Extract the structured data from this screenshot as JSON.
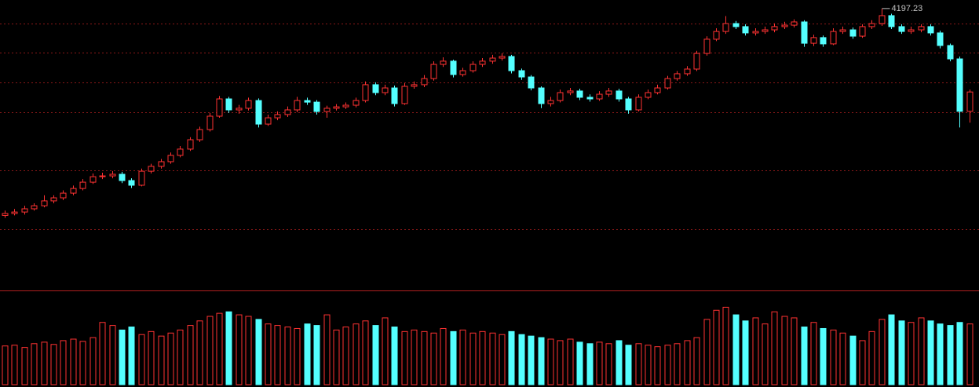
{
  "chart_data": {
    "type": "candlestick",
    "ylim": [
      2450,
      4250
    ],
    "gridlines": [
      4104,
      3924,
      3739,
      3554,
      3194,
      2829
    ],
    "volume_ylim": [
      0,
      6000
    ],
    "up_color": "#ff3232",
    "down_color": "#54ffff",
    "max_index": 90,
    "open": [
      2915,
      2927,
      2936,
      2956,
      2975,
      3005,
      3024,
      3053,
      3082,
      3121,
      3155,
      3160,
      3170,
      3131,
      3102,
      3189,
      3219,
      3248,
      3287,
      3326,
      3384,
      3447,
      3530,
      3637,
      3569,
      3579,
      3627,
      3481,
      3520,
      3540,
      3569,
      3627,
      3617,
      3559,
      3579,
      3588,
      3598,
      3627,
      3725,
      3676,
      3705,
      3608,
      3715,
      3725,
      3763,
      3851,
      3871,
      3788,
      3812,
      3851,
      3871,
      3890,
      3900,
      3812,
      3773,
      3705,
      3608,
      3627,
      3676,
      3686,
      3647,
      3637,
      3666,
      3686,
      3637,
      3569,
      3647,
      3676,
      3705,
      3763,
      3793,
      3822,
      3919,
      4007,
      4055,
      4104,
      4085,
      4046,
      4055,
      4065,
      4085,
      4094,
      4114,
      3982,
      4017,
      3978,
      4055,
      4065,
      4026,
      4085,
      4104,
      4153,
      4085,
      4055,
      4065,
      4085,
      4046,
      3968,
      3885,
      3560
    ],
    "close": [
      2927,
      2936,
      2956,
      2975,
      3005,
      3024,
      3053,
      3082,
      3121,
      3155,
      3160,
      3170,
      3131,
      3102,
      3189,
      3219,
      3248,
      3287,
      3326,
      3384,
      3447,
      3530,
      3637,
      3569,
      3579,
      3627,
      3481,
      3520,
      3540,
      3569,
      3627,
      3617,
      3559,
      3579,
      3588,
      3598,
      3627,
      3725,
      3676,
      3705,
      3608,
      3715,
      3725,
      3763,
      3851,
      3871,
      3788,
      3812,
      3851,
      3871,
      3890,
      3900,
      3812,
      3773,
      3705,
      3608,
      3627,
      3676,
      3686,
      3647,
      3637,
      3666,
      3686,
      3637,
      3569,
      3647,
      3676,
      3705,
      3763,
      3793,
      3822,
      3919,
      4007,
      4055,
      4104,
      4085,
      4046,
      4055,
      4065,
      4085,
      4094,
      4114,
      3982,
      4017,
      3978,
      4055,
      4065,
      4026,
      4085,
      4104,
      4153,
      4085,
      4055,
      4065,
      4085,
      4046,
      3968,
      3885,
      3560,
      3680
    ],
    "high": [
      2945,
      2955,
      2975,
      2990,
      3040,
      3040,
      3070,
      3100,
      3140,
      3175,
      3180,
      3190,
      3185,
      3145,
      3205,
      3235,
      3265,
      3305,
      3345,
      3400,
      3465,
      3550,
      3655,
      3650,
      3600,
      3645,
      3640,
      3540,
      3560,
      3590,
      3650,
      3645,
      3630,
      3595,
      3605,
      3615,
      3645,
      3745,
      3740,
      3725,
      3720,
      3735,
      3745,
      3785,
      3870,
      3895,
      3880,
      3830,
      3870,
      3890,
      3910,
      3920,
      3910,
      3825,
      3785,
      3715,
      3650,
      3695,
      3705,
      3700,
      3665,
      3685,
      3705,
      3700,
      3650,
      3665,
      3695,
      3725,
      3780,
      3810,
      3840,
      3935,
      4025,
      4075,
      4150,
      4120,
      4100,
      4075,
      4085,
      4105,
      4115,
      4130,
      4125,
      4035,
      4030,
      4075,
      4085,
      4080,
      4100,
      4125,
      4197.23,
      4165,
      4100,
      4085,
      4100,
      4100,
      4060,
      3980,
      3900,
      3695
    ],
    "low": [
      2900,
      2915,
      2920,
      2945,
      2965,
      2990,
      3010,
      3040,
      3070,
      3110,
      3140,
      3145,
      3115,
      3085,
      3095,
      3175,
      3205,
      3235,
      3275,
      3315,
      3370,
      3435,
      3520,
      3550,
      3545,
      3565,
      3460,
      3470,
      3505,
      3525,
      3555,
      3600,
      3540,
      3520,
      3565,
      3575,
      3585,
      3615,
      3660,
      3660,
      3590,
      3600,
      3700,
      3710,
      3750,
      3835,
      3770,
      3775,
      3800,
      3835,
      3855,
      3875,
      3795,
      3755,
      3690,
      3580,
      3590,
      3615,
      3660,
      3630,
      3620,
      3625,
      3650,
      3620,
      3545,
      3560,
      3635,
      3665,
      3695,
      3750,
      3780,
      3810,
      3905,
      3995,
      4040,
      4070,
      4030,
      4030,
      4040,
      4050,
      4070,
      4080,
      3960,
      3965,
      3960,
      3970,
      4040,
      4010,
      4015,
      4070,
      4090,
      4070,
      4040,
      4040,
      4050,
      4030,
      3950,
      3870,
      3460,
      3490
    ],
    "volume": [
      2550,
      2600,
      2450,
      2700,
      2800,
      2650,
      2900,
      3000,
      2850,
      3100,
      4100,
      3900,
      3600,
      3800,
      3300,
      3500,
      3200,
      3400,
      3600,
      3900,
      4200,
      4500,
      4700,
      4800,
      4600,
      4500,
      4300,
      4000,
      3900,
      3800,
      3700,
      4000,
      3900,
      4600,
      3600,
      3800,
      4000,
      4200,
      3900,
      4400,
      3800,
      3500,
      3600,
      3500,
      3400,
      3700,
      3500,
      3600,
      3400,
      3500,
      3400,
      3300,
      3500,
      3300,
      3200,
      3100,
      3000,
      2900,
      3000,
      2800,
      2700,
      2800,
      2700,
      2900,
      2600,
      2700,
      2600,
      2500,
      2600,
      2700,
      2900,
      3100,
      4300,
      4900,
      5100,
      4600,
      4200,
      4400,
      4000,
      4800,
      4500,
      4400,
      3800,
      4100,
      3700,
      3600,
      3400,
      3200,
      2900,
      3500,
      4300,
      4600,
      4200,
      4100,
      4400,
      4200,
      4000,
      3900,
      4100,
      4000
    ]
  }
}
